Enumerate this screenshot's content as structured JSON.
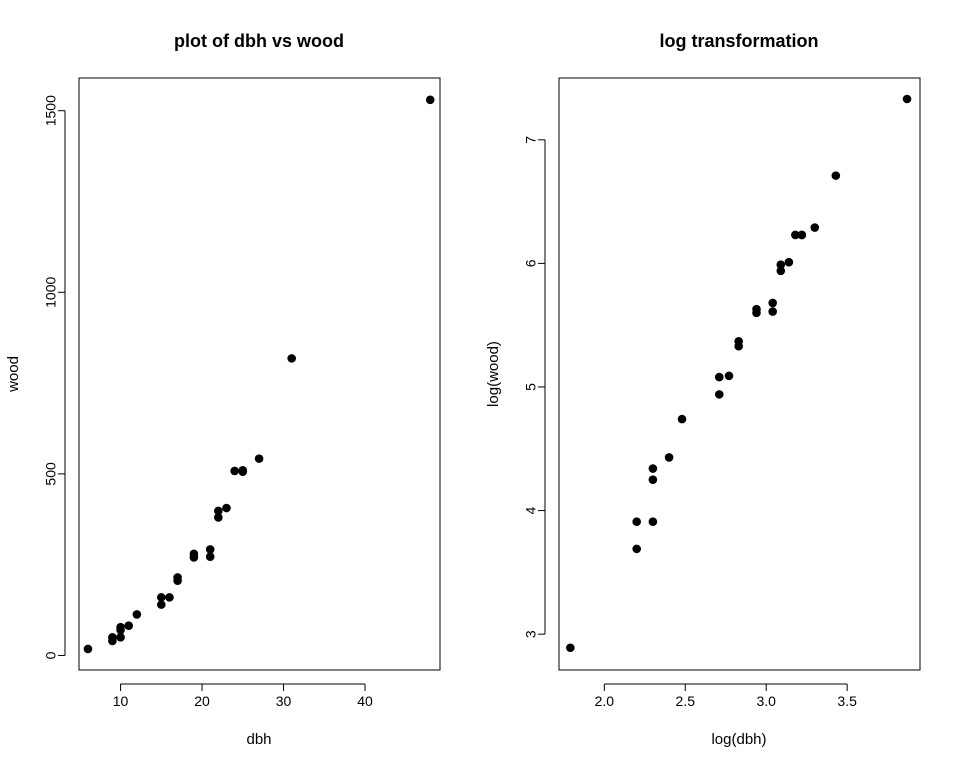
{
  "chart_data": [
    {
      "type": "scatter",
      "title": "plot of dbh vs wood",
      "xlabel": "dbh",
      "ylabel": "wood",
      "xlim": [
        4.9,
        49.2
      ],
      "ylim": [
        -40,
        1590
      ],
      "xticks": [
        10,
        20,
        30,
        40
      ],
      "yticks": [
        0,
        500,
        1000,
        1500
      ],
      "xtick_labels": [
        "10",
        "20",
        "30",
        "40"
      ],
      "ytick_labels": [
        "0",
        "500",
        "1000",
        "1500"
      ],
      "grid": false,
      "x": [
        6,
        9,
        9,
        10,
        10,
        10,
        11,
        12,
        15,
        15,
        16,
        17,
        17,
        19,
        19,
        21,
        21,
        22,
        22,
        23,
        24,
        25,
        25,
        27,
        31,
        48
      ],
      "y": [
        18,
        40,
        50,
        50,
        70,
        78,
        82,
        113,
        140,
        160,
        160,
        206,
        215,
        270,
        280,
        272,
        292,
        380,
        398,
        406,
        508,
        506,
        510,
        542,
        818,
        1530
      ]
    },
    {
      "type": "scatter",
      "title": "log transformation",
      "xlabel": "log(dbh)",
      "ylabel": "log(wood)",
      "xlim": [
        1.72,
        3.95
      ],
      "ylim": [
        2.71,
        7.5
      ],
      "xticks": [
        2.0,
        2.5,
        3.0,
        3.5
      ],
      "yticks": [
        3,
        4,
        5,
        6,
        7
      ],
      "xtick_labels": [
        "2.0",
        "2.5",
        "3.0",
        "3.5"
      ],
      "ytick_labels": [
        "3",
        "4",
        "5",
        "6",
        "7"
      ],
      "grid": false,
      "x": [
        1.79,
        2.2,
        2.2,
        2.3,
        2.3,
        2.3,
        2.4,
        2.48,
        2.71,
        2.71,
        2.77,
        2.83,
        2.83,
        2.94,
        2.94,
        3.04,
        3.04,
        3.09,
        3.09,
        3.14,
        3.18,
        3.22,
        3.22,
        3.3,
        3.43,
        3.87
      ],
      "y": [
        2.89,
        3.69,
        3.91,
        3.91,
        4.25,
        4.34,
        4.43,
        4.74,
        4.94,
        5.08,
        5.09,
        5.33,
        5.37,
        5.6,
        5.63,
        5.61,
        5.68,
        5.94,
        5.99,
        6.01,
        6.23,
        6.23,
        6.23,
        6.29,
        6.71,
        7.33
      ]
    }
  ]
}
